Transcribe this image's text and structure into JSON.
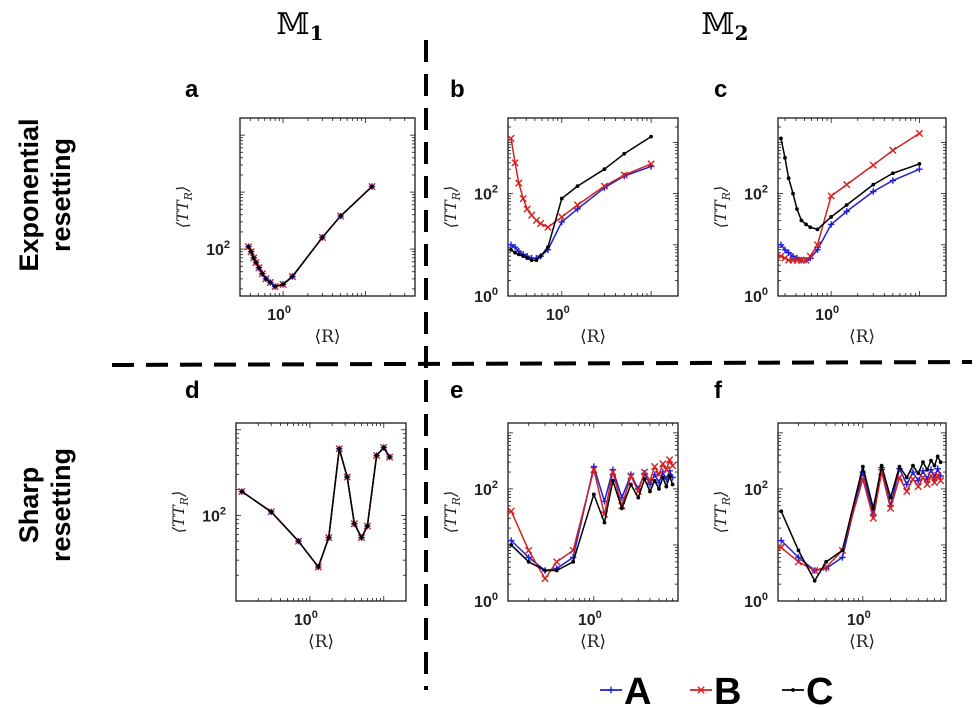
{
  "figure": {
    "column_headers": [
      "𝕄",
      "𝕄"
    ],
    "column_header_subscripts": [
      "1",
      "2"
    ],
    "row_labels": [
      [
        "Exponential",
        "resetting"
      ],
      [
        "Sharp",
        "resetting"
      ]
    ],
    "legend": [
      {
        "label": "A",
        "color": "#1f1fd6",
        "marker": "plus"
      },
      {
        "label": "B",
        "color": "#d42020",
        "marker": "x"
      },
      {
        "label": "C",
        "color": "#000000",
        "marker": "dot"
      }
    ]
  },
  "chart_data": [
    {
      "panel": "a",
      "type": "line",
      "xlabel": "⟨R⟩",
      "ylabel": "⟨TT",
      "ylabel_sub": "R",
      "ylabel_close": "⟩",
      "xticks": [
        {
          "value": 1,
          "label": "10",
          "exp": "0"
        }
      ],
      "yticks": [
        {
          "value": 100,
          "label": "10",
          "exp": "2"
        }
      ],
      "xlim": [
        0.3,
        40
      ],
      "ylim": [
        15,
        20000
      ],
      "series": [
        {
          "name": "A",
          "x": [
            0.38,
            0.41,
            0.44,
            0.47,
            0.51,
            0.56,
            0.62,
            0.7,
            0.8,
            1.0,
            1.3,
            3.0,
            5.0,
            12.0
          ],
          "values": [
            110,
            90,
            70,
            58,
            47,
            37,
            30,
            26,
            22,
            24,
            33,
            160,
            380,
            1250
          ]
        },
        {
          "name": "B",
          "x": [
            0.38,
            0.41,
            0.44,
            0.47,
            0.51,
            0.56,
            0.62,
            0.7,
            0.8,
            1.0,
            1.3,
            3.0,
            5.0,
            12.0
          ],
          "values": [
            110,
            90,
            70,
            58,
            47,
            37,
            30,
            26,
            22,
            24,
            33,
            160,
            380,
            1250
          ]
        },
        {
          "name": "C",
          "x": [
            0.38,
            0.41,
            0.44,
            0.47,
            0.51,
            0.56,
            0.62,
            0.7,
            0.8,
            1.0,
            1.3,
            3.0,
            5.0,
            12.0
          ],
          "values": [
            110,
            90,
            70,
            58,
            47,
            37,
            30,
            26,
            22,
            24,
            33,
            160,
            380,
            1250
          ]
        }
      ]
    },
    {
      "panel": "b",
      "type": "line",
      "xlabel": "⟨R⟩",
      "ylabel": "⟨TT",
      "ylabel_sub": "R",
      "ylabel_close": "⟩",
      "xticks": [
        {
          "value": 1,
          "label": "10",
          "exp": "0"
        }
      ],
      "yticks": [
        {
          "value": 1,
          "label": "10",
          "exp": "0"
        },
        {
          "value": 100,
          "label": "10",
          "exp": "2"
        }
      ],
      "xlim": [
        0.25,
        20
      ],
      "ylim": [
        1,
        3000
      ],
      "series": [
        {
          "name": "A",
          "x": [
            0.27,
            0.3,
            0.33,
            0.37,
            0.41,
            0.46,
            0.52,
            0.58,
            0.7,
            1.0,
            1.5,
            3.0,
            5.0,
            10.0
          ],
          "values": [
            10,
            9,
            7.5,
            6.5,
            6,
            5.5,
            5.5,
            6,
            8,
            28,
            50,
            130,
            220,
            340
          ]
        },
        {
          "name": "B",
          "x": [
            0.27,
            0.3,
            0.33,
            0.37,
            0.41,
            0.46,
            0.52,
            0.58,
            0.7,
            1.0,
            1.5,
            3.0,
            5.0,
            10.0
          ],
          "values": [
            1200,
            400,
            160,
            80,
            50,
            38,
            30,
            26,
            22,
            35,
            60,
            140,
            230,
            380
          ]
        },
        {
          "name": "C",
          "x": [
            0.27,
            0.3,
            0.33,
            0.37,
            0.41,
            0.46,
            0.52,
            0.58,
            0.7,
            1.0,
            1.5,
            3.0,
            5.0,
            10.0
          ],
          "values": [
            8,
            7,
            6.5,
            6,
            5.5,
            5,
            5,
            6,
            9,
            80,
            140,
            300,
            600,
            1300
          ]
        }
      ]
    },
    {
      "panel": "c",
      "type": "line",
      "xlabel": "⟨R⟩",
      "ylabel": "⟨TT",
      "ylabel_sub": "R",
      "ylabel_close": "⟩",
      "xticks": [
        {
          "value": 1,
          "label": "10",
          "exp": "0"
        }
      ],
      "yticks": [
        {
          "value": 1,
          "label": "10",
          "exp": "0"
        },
        {
          "value": 100,
          "label": "10",
          "exp": "2"
        }
      ],
      "xlim": [
        0.25,
        20
      ],
      "ylim": [
        1,
        3000
      ],
      "series": [
        {
          "name": "A",
          "x": [
            0.27,
            0.3,
            0.33,
            0.37,
            0.41,
            0.46,
            0.52,
            0.58,
            0.7,
            1.0,
            1.5,
            3.0,
            5.0,
            10.0
          ],
          "values": [
            10,
            8,
            7,
            6,
            5.5,
            5,
            5,
            5.5,
            8,
            25,
            45,
            110,
            180,
            300
          ]
        },
        {
          "name": "B",
          "x": [
            0.27,
            0.3,
            0.33,
            0.37,
            0.41,
            0.46,
            0.52,
            0.58,
            0.7,
            1.0,
            1.5,
            3.0,
            5.0,
            10.0
          ],
          "values": [
            6,
            5.5,
            5,
            5,
            5,
            5,
            5,
            6,
            10,
            90,
            150,
            360,
            700,
            1500
          ]
        },
        {
          "name": "C",
          "x": [
            0.27,
            0.3,
            0.33,
            0.37,
            0.41,
            0.46,
            0.52,
            0.58,
            0.7,
            1.0,
            1.5,
            3.0,
            5.0,
            10.0
          ],
          "values": [
            1200,
            500,
            200,
            100,
            50,
            30,
            25,
            22,
            20,
            35,
            60,
            150,
            250,
            380
          ]
        }
      ]
    },
    {
      "panel": "d",
      "type": "line",
      "xlabel": "⟨R⟩",
      "ylabel": "⟨TT",
      "ylabel_sub": "R",
      "ylabel_close": "⟩",
      "xticks": [
        {
          "value": 1,
          "label": "10",
          "exp": "0"
        }
      ],
      "yticks": [
        {
          "value": 100,
          "label": "10",
          "exp": "2"
        }
      ],
      "xlim": [
        0.1,
        20
      ],
      "ylim": [
        10,
        1200
      ],
      "series": [
        {
          "name": "A",
          "x": [
            0.12,
            0.3,
            0.7,
            1.3,
            1.8,
            2.5,
            3.2,
            4.0,
            5.0,
            6.0,
            8.0,
            10.0,
            12.0
          ],
          "values": [
            190,
            110,
            50,
            25,
            55,
            600,
            280,
            80,
            55,
            75,
            500,
            620,
            480
          ]
        },
        {
          "name": "B",
          "x": [
            0.12,
            0.3,
            0.7,
            1.3,
            1.8,
            2.5,
            3.2,
            4.0,
            5.0,
            6.0,
            8.0,
            10.0,
            12.0
          ],
          "values": [
            190,
            110,
            50,
            25,
            55,
            600,
            280,
            80,
            55,
            75,
            500,
            620,
            480
          ]
        },
        {
          "name": "C",
          "x": [
            0.12,
            0.3,
            0.7,
            1.3,
            1.8,
            2.5,
            3.2,
            4.0,
            5.0,
            6.0,
            8.0,
            10.0,
            12.0
          ],
          "values": [
            190,
            110,
            50,
            25,
            55,
            600,
            280,
            80,
            55,
            75,
            500,
            620,
            480
          ]
        }
      ]
    },
    {
      "panel": "e",
      "type": "line",
      "xlabel": "⟨R⟩",
      "ylabel": "⟨TT",
      "ylabel_sub": "R",
      "ylabel_close": "⟩",
      "xticks": [
        {
          "value": 1,
          "label": "10",
          "exp": "0"
        }
      ],
      "yticks": [
        {
          "value": 1,
          "label": "10",
          "exp": "0"
        },
        {
          "value": 100,
          "label": "10",
          "exp": "2"
        }
      ],
      "xlim": [
        0.12,
        8
      ],
      "ylim": [
        1,
        1500
      ],
      "series": [
        {
          "name": "A",
          "x": [
            0.13,
            0.2,
            0.3,
            0.4,
            0.6,
            1.0,
            1.3,
            1.6,
            2.0,
            2.5,
            3.0,
            3.5,
            4.0,
            4.5,
            5.0,
            5.5,
            6.0,
            6.5,
            7.0
          ],
          "values": [
            12,
            6,
            3.5,
            3.8,
            6,
            250,
            60,
            220,
            70,
            180,
            100,
            190,
            120,
            180,
            130,
            200,
            150,
            210,
            160
          ]
        },
        {
          "name": "B",
          "x": [
            0.13,
            0.2,
            0.3,
            0.4,
            0.6,
            1.0,
            1.3,
            1.6,
            2.0,
            2.5,
            3.0,
            3.5,
            4.0,
            4.5,
            5.0,
            5.5,
            6.0,
            6.5,
            7.0
          ],
          "values": [
            40,
            8,
            2.5,
            5,
            8,
            220,
            35,
            200,
            50,
            170,
            90,
            200,
            140,
            250,
            180,
            280,
            220,
            330,
            260
          ]
        },
        {
          "name": "C",
          "x": [
            0.13,
            0.2,
            0.3,
            0.4,
            0.6,
            1.0,
            1.3,
            1.6,
            2.0,
            2.5,
            3.0,
            3.5,
            4.0,
            4.5,
            5.0,
            5.5,
            6.0,
            6.5,
            7.0
          ],
          "values": [
            10,
            5,
            3.5,
            3.5,
            5,
            80,
            25,
            140,
            45,
            120,
            70,
            150,
            90,
            140,
            100,
            160,
            110,
            170,
            120
          ]
        }
      ]
    },
    {
      "panel": "f",
      "type": "line",
      "xlabel": "⟨R⟩",
      "ylabel": "⟨TT",
      "ylabel_sub": "R",
      "ylabel_close": "⟩",
      "xticks": [
        {
          "value": 1,
          "label": "10",
          "exp": "0"
        }
      ],
      "yticks": [
        {
          "value": 1,
          "label": "10",
          "exp": "0"
        },
        {
          "value": 100,
          "label": "10",
          "exp": "2"
        }
      ],
      "xlim": [
        0.12,
        8
      ],
      "ylim": [
        1,
        1500
      ],
      "series": [
        {
          "name": "A",
          "x": [
            0.13,
            0.2,
            0.3,
            0.4,
            0.6,
            1.0,
            1.3,
            1.6,
            2.0,
            2.5,
            3.0,
            3.5,
            4.0,
            4.5,
            5.0,
            5.5,
            6.0,
            6.5,
            7.0
          ],
          "values": [
            12,
            6,
            3.5,
            3.8,
            6,
            200,
            35,
            240,
            50,
            230,
            120,
            200,
            140,
            210,
            150,
            220,
            160,
            230,
            170
          ]
        },
        {
          "name": "B",
          "x": [
            0.13,
            0.2,
            0.3,
            0.4,
            0.6,
            1.0,
            1.3,
            1.6,
            2.0,
            2.5,
            3.0,
            3.5,
            4.0,
            4.5,
            5.0,
            5.5,
            6.0,
            6.5,
            7.0
          ],
          "values": [
            9,
            5,
            3.5,
            4,
            8,
            150,
            30,
            200,
            45,
            160,
            90,
            150,
            110,
            160,
            120,
            170,
            130,
            175,
            140
          ]
        },
        {
          "name": "C",
          "x": [
            0.13,
            0.2,
            0.3,
            0.4,
            0.6,
            1.0,
            1.3,
            1.6,
            2.0,
            2.5,
            3.0,
            3.5,
            4.0,
            4.5,
            5.0,
            5.5,
            6.0,
            6.5,
            7.0
          ],
          "values": [
            40,
            8,
            2.3,
            5,
            8,
            250,
            45,
            260,
            70,
            250,
            160,
            260,
            190,
            300,
            220,
            320,
            260,
            380,
            300
          ]
        }
      ]
    }
  ]
}
